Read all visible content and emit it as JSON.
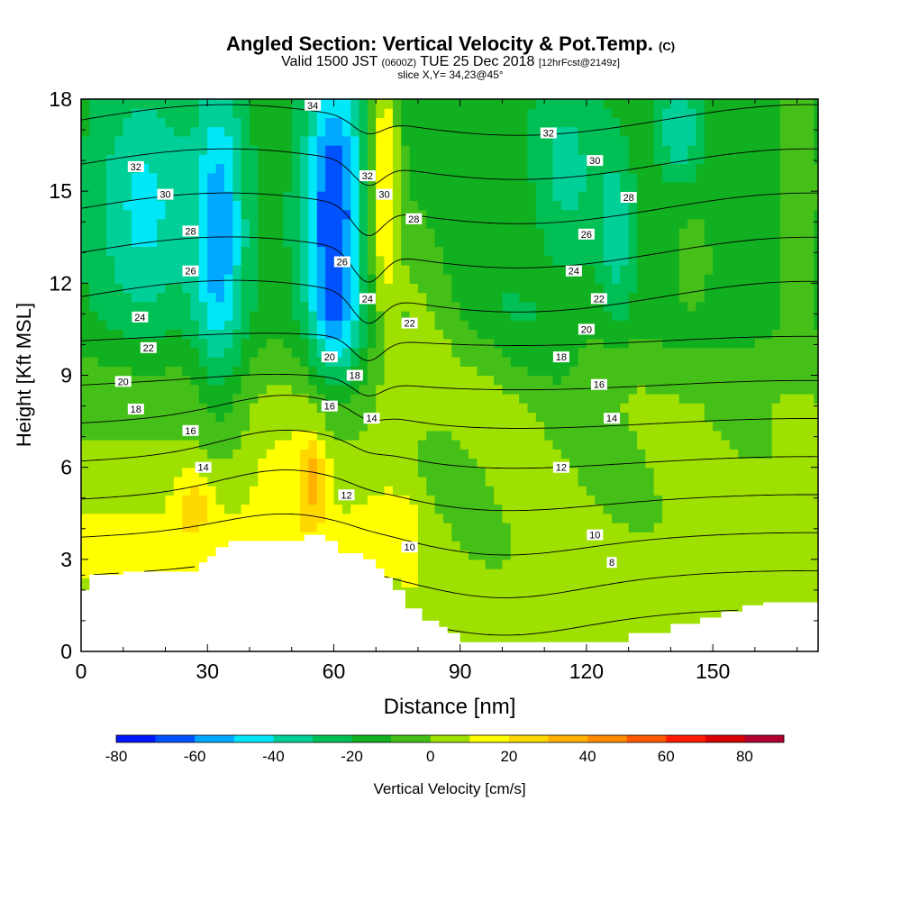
{
  "header": {
    "title_main": "Angled Section: Vertical Velocity & Pot.Temp.",
    "title_unit": "(C)",
    "valid_prefix": "Valid 1500 JST",
    "valid_utc": "(0600Z)",
    "valid_date": "TUE 25 Dec 2018",
    "forecast": "[12hrFcst@2149z]",
    "slice": "slice X,Y= 34,23@45°"
  },
  "colors": {
    "terrain": "#ffffff",
    "contour_line": "#000000",
    "palette": [
      "#0018ff",
      "#0052ff",
      "#00a8ff",
      "#00e8f8",
      "#00d098",
      "#00c055",
      "#10b020",
      "#44c018",
      "#9ee000",
      "#ffff00",
      "#ffd800",
      "#ffb000",
      "#ff8c00",
      "#ff5a00",
      "#ff1a00",
      "#d80000",
      "#b00030",
      "#8a0068",
      "#5a0088"
    ]
  },
  "chart_data": {
    "type": "heatmap",
    "xlabel": "Distance [nm]",
    "ylabel": "Height [Kft MSL]",
    "xlim": [
      0,
      175
    ],
    "ylim": [
      0,
      18
    ],
    "xticks": [
      0,
      30,
      60,
      90,
      120,
      150
    ],
    "yticks": [
      0,
      3,
      6,
      9,
      12,
      15,
      18
    ],
    "colorbar": {
      "label": "Vertical Velocity [cm/s]",
      "range": [
        -80,
        90
      ],
      "step": 10,
      "tick_values": [
        -80,
        -60,
        -40,
        -20,
        0,
        20,
        40,
        60,
        80
      ]
    },
    "field": "Vertical Velocity (cm/s) filled contours",
    "contour_field": "Potential Temperature (C)",
    "terrain_profile": {
      "x": [
        0,
        2,
        2,
        7,
        7,
        10,
        10,
        28,
        28,
        30,
        30,
        32,
        32,
        35,
        35,
        53,
        53,
        58,
        58,
        61,
        61,
        67,
        67,
        70,
        70,
        72,
        72,
        74,
        74,
        77,
        77,
        81,
        81,
        85,
        85,
        87,
        87,
        90,
        90,
        100,
        100,
        130,
        130,
        140,
        140,
        147,
        147,
        152,
        152,
        157,
        157,
        162,
        162,
        175
      ],
      "y": [
        2.0,
        2.0,
        2.5,
        2.5,
        2.5,
        2.5,
        2.6,
        2.6,
        2.9,
        2.9,
        3.1,
        3.1,
        3.4,
        3.4,
        3.6,
        3.6,
        3.8,
        3.8,
        3.6,
        3.6,
        3.2,
        3.2,
        3.0,
        3.0,
        2.7,
        2.7,
        2.4,
        2.4,
        2.0,
        2.0,
        1.4,
        1.4,
        1.0,
        1.0,
        0.8,
        0.8,
        0.6,
        0.6,
        0.3,
        0.3,
        0.3,
        0.3,
        0.6,
        0.6,
        0.9,
        0.9,
        1.1,
        1.1,
        1.3,
        1.3,
        1.5,
        1.5,
        1.6,
        1.6
      ]
    },
    "theta_levels": [
      8,
      10,
      12,
      14,
      16,
      18,
      20,
      22,
      24,
      26,
      28,
      30,
      32,
      34
    ],
    "theta_labels": [
      {
        "text": "8",
        "x": 126,
        "y": 2.9
      },
      {
        "text": "10",
        "x": 122,
        "y": 3.8
      },
      {
        "text": "10",
        "x": 78,
        "y": 3.4
      },
      {
        "text": "12",
        "x": 63,
        "y": 5.1
      },
      {
        "text": "12",
        "x": 114,
        "y": 6.0
      },
      {
        "text": "14",
        "x": 29,
        "y": 6.0
      },
      {
        "text": "14",
        "x": 69,
        "y": 7.6
      },
      {
        "text": "14",
        "x": 126,
        "y": 7.6
      },
      {
        "text": "16",
        "x": 26,
        "y": 7.2
      },
      {
        "text": "16",
        "x": 59,
        "y": 8.0
      },
      {
        "text": "16",
        "x": 123,
        "y": 8.7
      },
      {
        "text": "18",
        "x": 13,
        "y": 7.9
      },
      {
        "text": "18",
        "x": 65,
        "y": 9.0
      },
      {
        "text": "18",
        "x": 114,
        "y": 9.6
      },
      {
        "text": "20",
        "x": 10,
        "y": 8.8
      },
      {
        "text": "20",
        "x": 59,
        "y": 9.6
      },
      {
        "text": "20",
        "x": 120,
        "y": 10.5
      },
      {
        "text": "22",
        "x": 16,
        "y": 9.9
      },
      {
        "text": "22",
        "x": 78,
        "y": 10.7
      },
      {
        "text": "22",
        "x": 123,
        "y": 11.5
      },
      {
        "text": "24",
        "x": 14,
        "y": 10.9
      },
      {
        "text": "24",
        "x": 68,
        "y": 11.5
      },
      {
        "text": "24",
        "x": 117,
        "y": 12.4
      },
      {
        "text": "26",
        "x": 26,
        "y": 12.4
      },
      {
        "text": "26",
        "x": 62,
        "y": 12.7
      },
      {
        "text": "26",
        "x": 120,
        "y": 13.6
      },
      {
        "text": "28",
        "x": 26,
        "y": 13.7
      },
      {
        "text": "28",
        "x": 79,
        "y": 14.1
      },
      {
        "text": "28",
        "x": 130,
        "y": 14.8
      },
      {
        "text": "30",
        "x": 20,
        "y": 14.9
      },
      {
        "text": "30",
        "x": 72,
        "y": 14.9
      },
      {
        "text": "30",
        "x": 122,
        "y": 16.0
      },
      {
        "text": "32",
        "x": 13,
        "y": 15.8
      },
      {
        "text": "32",
        "x": 68,
        "y": 15.5
      },
      {
        "text": "32",
        "x": 111,
        "y": 16.9
      },
      {
        "text": "34",
        "x": 55,
        "y": 17.8
      }
    ],
    "velocity_features": [
      {
        "name": "strong descent (blue)",
        "x": 60,
        "y": 15,
        "value": -60
      },
      {
        "name": "descent column (cyan)",
        "x": 33,
        "y": 14,
        "value": -40
      },
      {
        "name": "ascent (orange)",
        "x": 55,
        "y": 5.5,
        "value": 40
      },
      {
        "name": "ascent (orange)",
        "x": 72,
        "y": 16,
        "value": 30
      },
      {
        "name": "ascent (orange)",
        "x": 27,
        "y": 4.8,
        "value": 20
      }
    ]
  }
}
